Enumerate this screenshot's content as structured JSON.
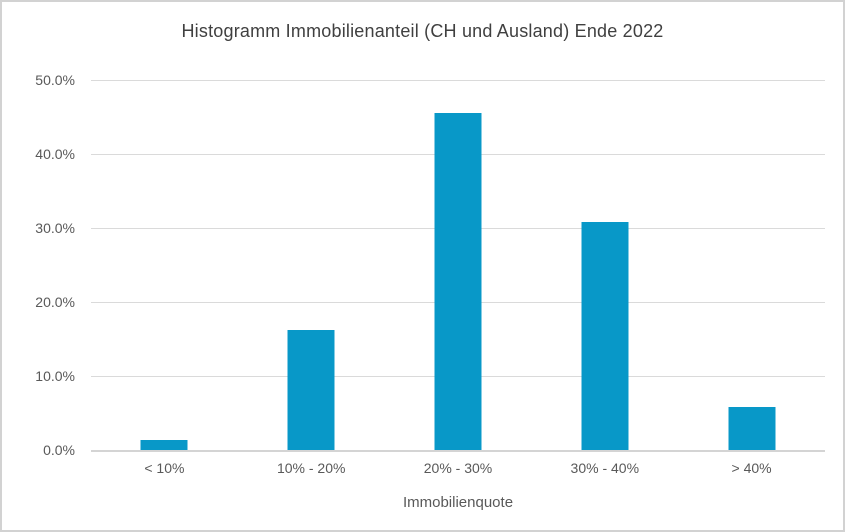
{
  "chart_data": {
    "type": "bar",
    "title": "Histogramm Immobilienanteil (CH und Ausland) Ende 2022",
    "xlabel": "Immobilienquote",
    "ylabel": "",
    "categories": [
      "< 10%",
      "10% - 20%",
      "20% - 30%",
      "30% - 40%",
      "> 40%"
    ],
    "values": [
      1.4,
      16.2,
      45.6,
      30.8,
      5.8
    ],
    "value_unit": "percent",
    "ylim": [
      0,
      50
    ],
    "ytick_values": [
      0,
      10,
      20,
      30,
      40,
      50
    ],
    "ytick_labels": [
      "0.0%",
      "10.0%",
      "20.0%",
      "30.0%",
      "40.0%",
      "50.0%"
    ],
    "grid": "horizontal",
    "legend": "none",
    "colors": {
      "bar": "#0898c8",
      "gridline": "#dadada",
      "axis_line": "#d4d4d4",
      "axis_text": "#595959",
      "title_text": "#404040",
      "background": "#ffffff",
      "border": "#d2d2d2"
    }
  }
}
